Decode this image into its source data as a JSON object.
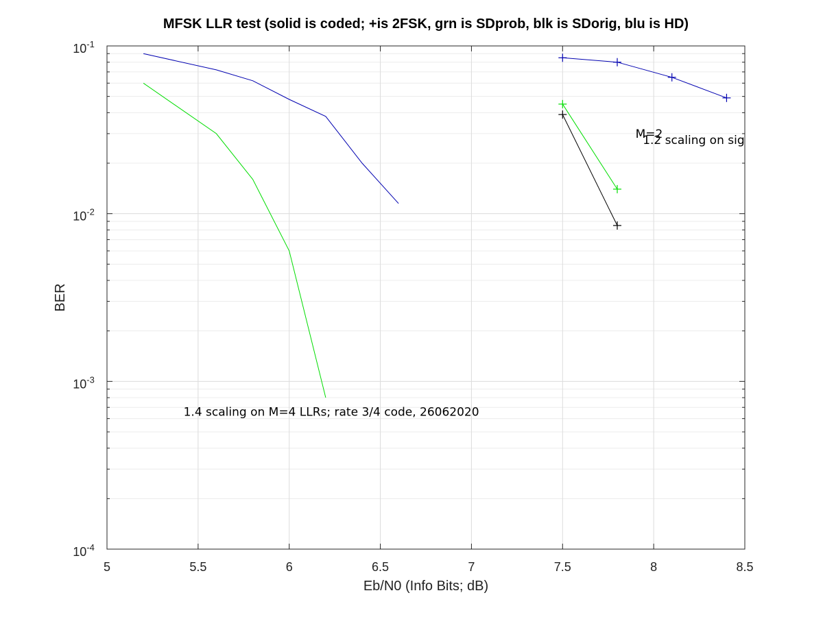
{
  "chart_data": {
    "type": "line",
    "title": "MFSK LLR test (solid is coded; +is 2FSK, grn is SDprob, blk is SDorig, blu is HD)",
    "xlabel": "Eb/N0 (Info Bits; dB)",
    "ylabel": "BER",
    "xlim": [
      5,
      8.5
    ],
    "ylim": [
      0.0001,
      0.1
    ],
    "yscale": "log",
    "grid": true,
    "x_ticks": [
      "5",
      "5.5",
      "6",
      "6.5",
      "7",
      "7.5",
      "8",
      "8.5"
    ],
    "y_ticks": [
      {
        "base": "10",
        "exp": "-4"
      },
      {
        "base": "10",
        "exp": "-3"
      },
      {
        "base": "10",
        "exp": "-2"
      },
      {
        "base": "10",
        "exp": "-1"
      }
    ],
    "series": [
      {
        "color": "#0000b0",
        "marker": "none",
        "x": [
          5.2,
          5.6,
          5.8,
          6.0,
          6.2,
          6.4,
          6.6
        ],
        "y": [
          0.09,
          0.072,
          0.062,
          0.048,
          0.038,
          0.02,
          0.0115
        ]
      },
      {
        "color": "#00dd00",
        "marker": "none",
        "x": [
          5.2,
          5.6,
          5.8,
          6.0,
          6.2
        ],
        "y": [
          0.06,
          0.03,
          0.016,
          0.006,
          0.0008
        ]
      },
      {
        "color": "#0000b0",
        "marker": "+",
        "x": [
          7.5,
          7.8,
          8.1,
          8.4
        ],
        "y": [
          0.085,
          0.08,
          0.065,
          0.049
        ]
      },
      {
        "color": "#00dd00",
        "marker": "+",
        "x": [
          7.5,
          7.8
        ],
        "y": [
          0.045,
          0.014
        ]
      },
      {
        "color": "#000000",
        "marker": "+",
        "x": [
          7.5,
          7.8
        ],
        "y": [
          0.039,
          0.0085
        ]
      }
    ],
    "annotations": [
      {
        "text": "1.4 scaling on M=4 LLRs;   rate 3/4 code, 26062020",
        "x": 5.42,
        "y": 0.00066
      },
      {
        "text": "M=2",
        "x": 7.9,
        "y": 0.03
      },
      {
        "text": "1.2 scaling on sig",
        "x": 7.94,
        "y": 0.0275
      }
    ]
  }
}
